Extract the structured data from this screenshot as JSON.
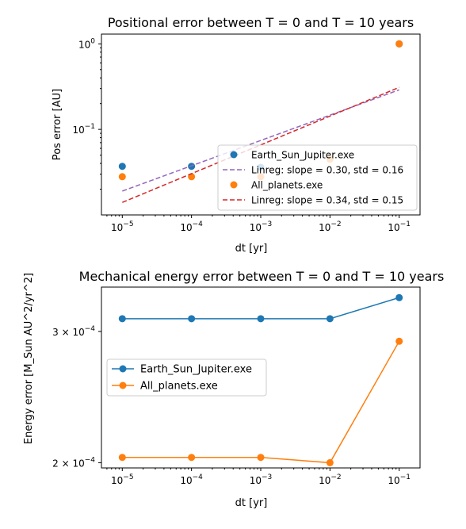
{
  "chart_data": [
    {
      "type": "scatter",
      "title": "Positional error between T = 0 and T = 10 years",
      "xlabel": "dt [yr]",
      "ylabel": "Pos error [AU]",
      "xscale": "log",
      "yscale": "log",
      "xlim": [
        5e-06,
        0.2
      ],
      "ylim": [
        0.01,
        1.3
      ],
      "grid": false,
      "legend_position": "lower-right",
      "xticks": [
        {
          "v": 1e-05,
          "b": "10",
          "e": "−5"
        },
        {
          "v": 0.0001,
          "b": "10",
          "e": "−4"
        },
        {
          "v": 0.001,
          "b": "10",
          "e": "−3"
        },
        {
          "v": 0.01,
          "b": "10",
          "e": "−2"
        },
        {
          "v": 0.1,
          "b": "10",
          "e": "−1"
        }
      ],
      "yticks": [
        {
          "v": 0.1,
          "b": "10",
          "e": "−1"
        },
        {
          "v": 1,
          "b": "10",
          "e": "0"
        }
      ],
      "series": [
        {
          "name": "Earth_Sun_Jupiter.exe",
          "kind": "points",
          "color": "#1f77b4",
          "x": [
            1e-05,
            0.0001,
            0.001,
            0.01,
            0.1
          ],
          "y": [
            0.037,
            0.037,
            0.036,
            0.045,
            1.0
          ]
        },
        {
          "name": "Linreg: slope = 0.30, std = 0.16",
          "kind": "dashed-line",
          "color": "#9467bd",
          "x": [
            1e-05,
            0.1
          ],
          "y": [
            0.019,
            0.29
          ]
        },
        {
          "name": "All_planets.exe",
          "kind": "points",
          "color": "#ff7f0e",
          "x": [
            1e-05,
            0.0001,
            0.001,
            0.01,
            0.1
          ],
          "y": [
            0.028,
            0.028,
            0.028,
            0.045,
            1.0
          ]
        },
        {
          "name": "Linreg: slope = 0.34, std = 0.15",
          "kind": "dashed-line",
          "color": "#d62728",
          "x": [
            1e-05,
            0.1
          ],
          "y": [
            0.014,
            0.31
          ]
        }
      ]
    },
    {
      "type": "line",
      "title": "Mechanical energy error between T = 0 and T = 10 years",
      "xlabel": "dt [yr]",
      "ylabel": "Energy error  [M_Sun AU^2/yr^2]",
      "xscale": "log",
      "yscale": "log",
      "xlim": [
        5e-06,
        0.2
      ],
      "ylim": [
        0.0001968,
        0.000344
      ],
      "grid": false,
      "legend_position": "center-left",
      "xticks": [
        {
          "v": 1e-05,
          "b": "10",
          "e": "−5"
        },
        {
          "v": 0.0001,
          "b": "10",
          "e": "−4"
        },
        {
          "v": 0.001,
          "b": "10",
          "e": "−3"
        },
        {
          "v": 0.01,
          "b": "10",
          "e": "−2"
        },
        {
          "v": 0.1,
          "b": "10",
          "e": "−1"
        }
      ],
      "yticks": [
        {
          "v": 0.0002,
          "b": "2 × 10",
          "e": "−4"
        },
        {
          "v": 0.0003,
          "b": "3 × 10",
          "e": "−4"
        }
      ],
      "series": [
        {
          "name": "Earth_Sun_Jupiter.exe",
          "kind": "line-markers",
          "color": "#1f77b4",
          "x": [
            1e-05,
            0.0001,
            0.001,
            0.01,
            0.1
          ],
          "y": [
            0.000312,
            0.000312,
            0.000312,
            0.000312,
            0.000333
          ]
        },
        {
          "name": "All_planets.exe",
          "kind": "line-markers",
          "color": "#ff7f0e",
          "x": [
            1e-05,
            0.0001,
            0.001,
            0.01,
            0.1
          ],
          "y": [
            0.0002033,
            0.0002033,
            0.0002033,
            0.0002,
            0.000291
          ]
        }
      ]
    }
  ]
}
